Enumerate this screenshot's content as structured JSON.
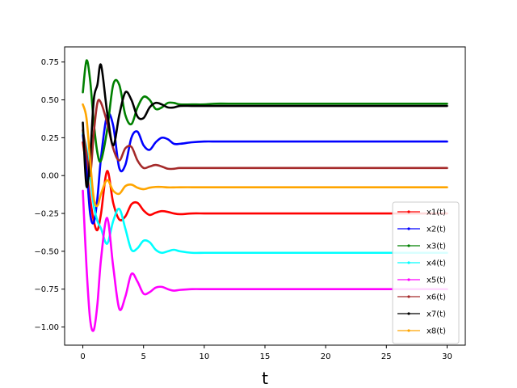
{
  "chart_data": {
    "type": "line",
    "title": "",
    "xlabel": "t",
    "ylabel": "",
    "xlim": [
      -1.5,
      31.5
    ],
    "ylim": [
      -1.12,
      0.85
    ],
    "xticks": [
      0,
      5,
      10,
      15,
      20,
      25,
      30
    ],
    "xtick_labels": [
      "0",
      "5",
      "10",
      "15",
      "20",
      "25",
      "30"
    ],
    "yticks": [
      -1.0,
      -0.75,
      -0.5,
      -0.25,
      0.0,
      0.25,
      0.5,
      0.75
    ],
    "ytick_labels": [
      "−1.00",
      "−0.75",
      "−0.50",
      "−0.25",
      "0.00",
      "0.25",
      "0.50",
      "0.75"
    ],
    "grid": false,
    "legend_position": "lower-right",
    "x": [
      0,
      0.3,
      0.6,
      0.9,
      1.2,
      1.5,
      2,
      2.5,
      3,
      3.5,
      4,
      4.5,
      5,
      5.5,
      6,
      6.5,
      7,
      7.5,
      8,
      9,
      10,
      11,
      12,
      15,
      20,
      25,
      30
    ],
    "series": [
      {
        "name": "x1(t)",
        "color": "#ff0000",
        "values": [
          0.22,
          0.05,
          -0.15,
          -0.3,
          -0.36,
          -0.25,
          0.03,
          -0.18,
          -0.29,
          -0.27,
          -0.19,
          -0.18,
          -0.23,
          -0.26,
          -0.245,
          -0.235,
          -0.24,
          -0.25,
          -0.255,
          -0.25,
          -0.25,
          -0.25,
          -0.25,
          -0.25,
          -0.25,
          -0.25,
          -0.25
        ]
      },
      {
        "name": "x2(t)",
        "color": "#0000ff",
        "values": [
          0.27,
          0.05,
          -0.25,
          -0.31,
          -0.15,
          0.12,
          0.4,
          0.33,
          0.05,
          0.07,
          0.25,
          0.29,
          0.2,
          0.17,
          0.22,
          0.25,
          0.24,
          0.21,
          0.21,
          0.22,
          0.225,
          0.225,
          0.225,
          0.225,
          0.225,
          0.225,
          0.225
        ]
      },
      {
        "name": "x3(t)",
        "color": "#008000",
        "values": [
          0.55,
          0.76,
          0.63,
          0.35,
          0.15,
          0.1,
          0.3,
          0.6,
          0.6,
          0.4,
          0.34,
          0.45,
          0.52,
          0.5,
          0.44,
          0.45,
          0.48,
          0.48,
          0.47,
          0.47,
          0.47,
          0.475,
          0.475,
          0.475,
          0.475,
          0.475,
          0.475
        ]
      },
      {
        "name": "x4(t)",
        "color": "#00ffff",
        "values": [
          0.28,
          0.18,
          0.0,
          -0.2,
          -0.3,
          -0.35,
          -0.45,
          -0.3,
          -0.22,
          -0.35,
          -0.49,
          -0.48,
          -0.43,
          -0.44,
          -0.49,
          -0.51,
          -0.5,
          -0.49,
          -0.5,
          -0.51,
          -0.51,
          -0.51,
          -0.51,
          -0.51,
          -0.51,
          -0.51,
          -0.51
        ]
      },
      {
        "name": "x5(t)",
        "color": "#ff00ff",
        "values": [
          -0.1,
          -0.6,
          -0.95,
          -1.02,
          -0.85,
          -0.55,
          -0.28,
          -0.6,
          -0.88,
          -0.8,
          -0.65,
          -0.7,
          -0.78,
          -0.77,
          -0.74,
          -0.735,
          -0.75,
          -0.76,
          -0.755,
          -0.75,
          -0.75,
          -0.75,
          -0.75,
          -0.75,
          -0.75,
          -0.75,
          -0.75
        ]
      },
      {
        "name": "x6(t)",
        "color": "#a52a2a",
        "values": [
          0.3,
          0.15,
          0.0,
          0.28,
          0.48,
          0.48,
          0.35,
          0.18,
          0.1,
          0.18,
          0.19,
          0.1,
          0.05,
          0.06,
          0.07,
          0.06,
          0.045,
          0.045,
          0.05,
          0.05,
          0.05,
          0.05,
          0.05,
          0.05,
          0.05,
          0.05,
          0.05
        ]
      },
      {
        "name": "x7(t)",
        "color": "#000000",
        "values": [
          0.35,
          -0.07,
          0.12,
          0.5,
          0.6,
          0.73,
          0.42,
          0.2,
          0.4,
          0.55,
          0.5,
          0.39,
          0.38,
          0.45,
          0.48,
          0.47,
          0.45,
          0.45,
          0.46,
          0.46,
          0.46,
          0.46,
          0.46,
          0.46,
          0.46,
          0.46,
          0.46
        ]
      },
      {
        "name": "x8(t)",
        "color": "#ffa500",
        "values": [
          0.47,
          0.38,
          0.1,
          -0.15,
          -0.2,
          -0.12,
          -0.03,
          -0.1,
          -0.12,
          -0.07,
          -0.06,
          -0.08,
          -0.09,
          -0.08,
          -0.075,
          -0.075,
          -0.078,
          -0.078,
          -0.077,
          -0.077,
          -0.077,
          -0.077,
          -0.077,
          -0.077,
          -0.077,
          -0.077,
          -0.077
        ]
      }
    ]
  }
}
